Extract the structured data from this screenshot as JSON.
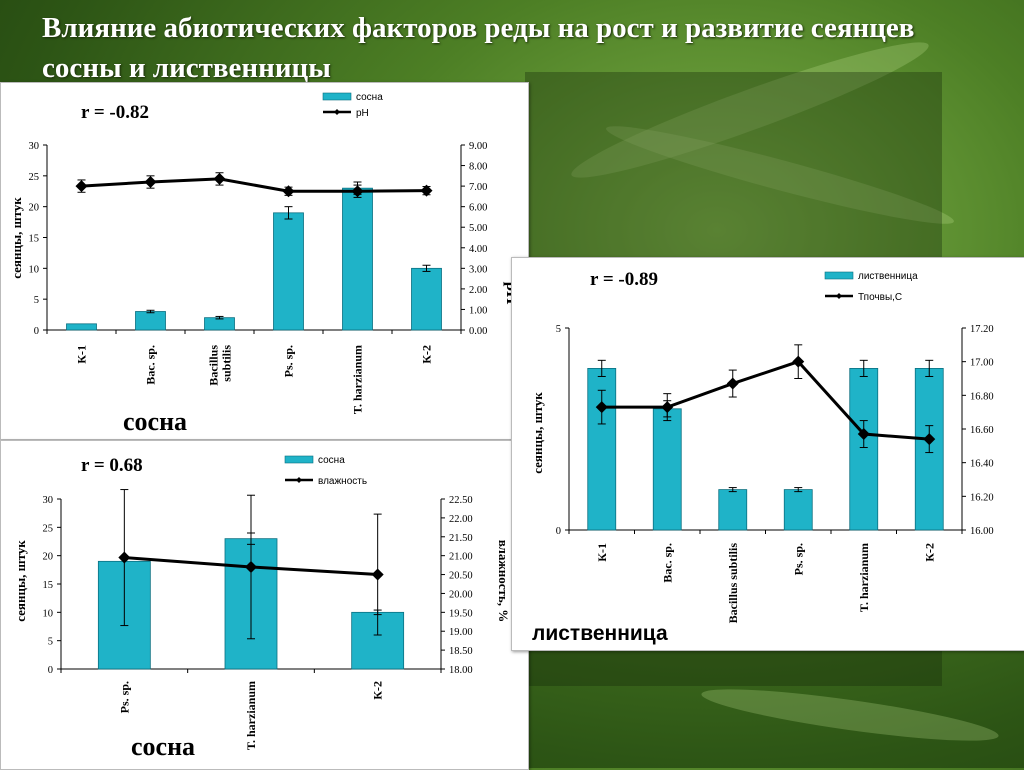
{
  "slide": {
    "title": "Влияние абиотических факторов реды на рост и развитие сеянцев сосны и лиственницы"
  },
  "colors": {
    "bar": "#1fb3c8",
    "bar_stroke": "#0a6f80",
    "line": "#000000"
  },
  "chart_data": [
    {
      "type": "bar",
      "r_label": "r = -0.82",
      "caption": "сосна",
      "categories": [
        "К-1",
        "Bac. sp.",
        "Bacillus subtilis",
        "Ps. sp.",
        "T. harzianum",
        "К-2"
      ],
      "series": [
        {
          "name": "сосна",
          "type": "bar",
          "axis": "left",
          "values": [
            1,
            3,
            2,
            19,
            23,
            10
          ],
          "errors": [
            0,
            0.2,
            0.2,
            1,
            1,
            0.5
          ]
        },
        {
          "name": "pH",
          "type": "line",
          "axis": "right",
          "values": [
            7.0,
            7.2,
            7.35,
            6.75,
            6.75,
            6.78
          ],
          "errors": [
            0.3,
            0.3,
            0.3,
            0.2,
            0.3,
            0.2
          ]
        }
      ],
      "ylabel": "сеянцы, штук",
      "y2label": "pH",
      "ylim": [
        0,
        30
      ],
      "yticks": [
        "0",
        "5",
        "10",
        "15",
        "20",
        "25",
        "30"
      ],
      "y2lim": [
        0,
        9
      ],
      "y2ticks": [
        "0.00",
        "1.00",
        "2.00",
        "3.00",
        "4.00",
        "5.00",
        "6.00",
        "7.00",
        "8.00",
        "9.00"
      ],
      "legend": "top"
    },
    {
      "type": "bar",
      "r_label": "r = 0.68",
      "caption": "сосна",
      "categories": [
        "Ps. sp.",
        "T. harzianum",
        "К-2"
      ],
      "series": [
        {
          "name": "сосна",
          "type": "bar",
          "axis": "left",
          "values": [
            19,
            23,
            10
          ],
          "errors": [
            0,
            1,
            0.4
          ]
        },
        {
          "name": "влажность",
          "type": "line",
          "axis": "right",
          "values": [
            20.95,
            20.7,
            20.5
          ],
          "errors": [
            1.8,
            1.9,
            1.6
          ]
        }
      ],
      "ylabel": "сеянцы, штук",
      "y2label": "влажность, %",
      "ylim": [
        0,
        30
      ],
      "yticks": [
        "0",
        "5",
        "10",
        "15",
        "20",
        "25",
        "30"
      ],
      "y2lim": [
        18,
        22.5
      ],
      "y2ticks": [
        "18.00",
        "18.50",
        "19.00",
        "19.50",
        "20.00",
        "20.50",
        "21.00",
        "21.50",
        "22.00",
        "22.50"
      ],
      "legend": "top"
    },
    {
      "type": "bar",
      "r_label": "r = -0.89",
      "caption": "лиственница",
      "categories": [
        "К-1",
        "Bac. sp.",
        "Bacillus subtilis",
        "Ps. sp.",
        "T. harzianum",
        "К-2"
      ],
      "series": [
        {
          "name": "лиственница",
          "type": "bar",
          "axis": "left",
          "values": [
            4,
            3,
            1,
            1,
            4,
            4
          ],
          "errors": [
            0.2,
            0.2,
            0.05,
            0.05,
            0.2,
            0.2
          ]
        },
        {
          "name": "Тпочвы,С",
          "type": "line",
          "axis": "right",
          "values": [
            16.73,
            16.73,
            16.87,
            17.0,
            16.57,
            16.54
          ],
          "errors": [
            0.1,
            0.08,
            0.08,
            0.1,
            0.08,
            0.08
          ]
        }
      ],
      "ylabel": "сеянцы, штук",
      "ylim": [
        0,
        5
      ],
      "yticks": [
        "0",
        "5"
      ],
      "y2lim": [
        16,
        17.2
      ],
      "y2ticks": [
        "16.00",
        "16.20",
        "16.40",
        "16.60",
        "16.80",
        "17.00",
        "17.20"
      ],
      "legend": "top-right"
    }
  ]
}
